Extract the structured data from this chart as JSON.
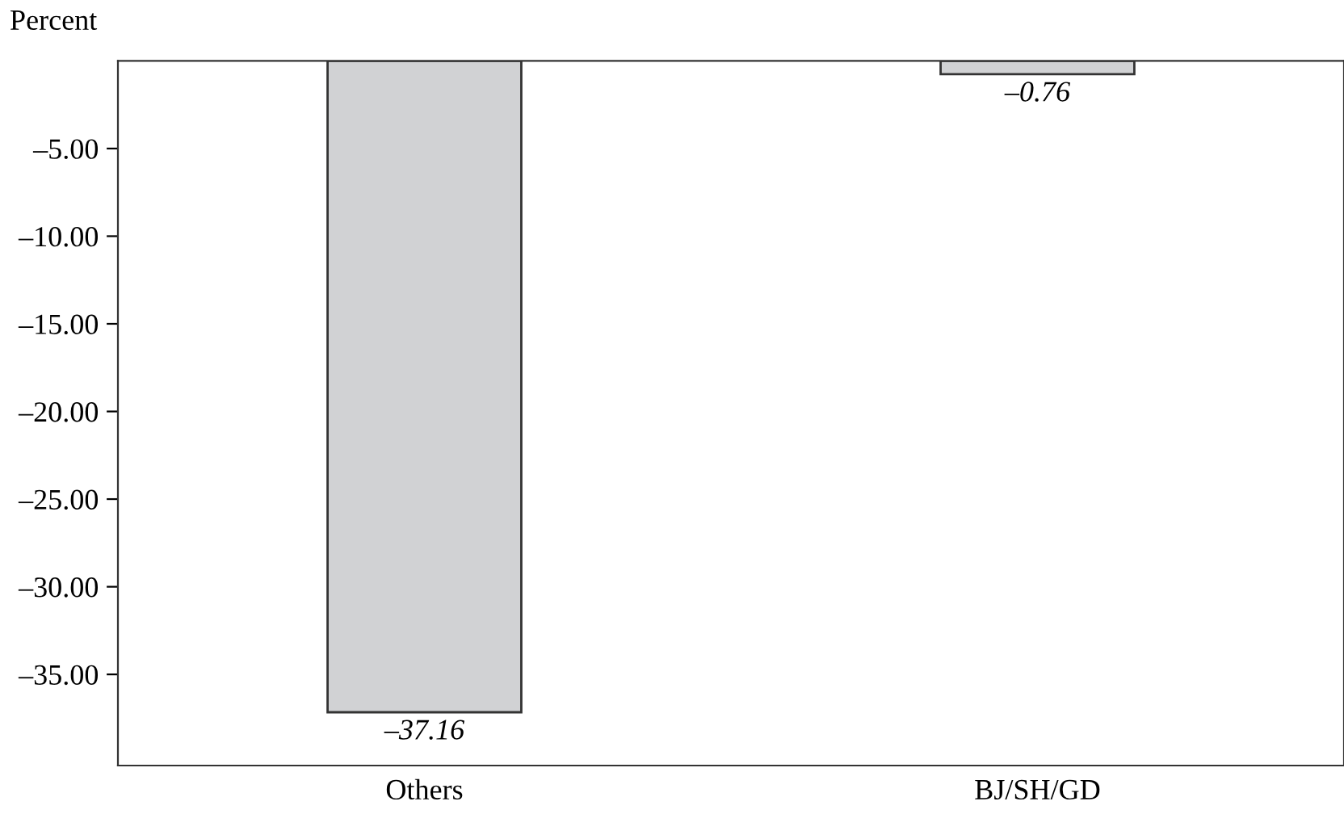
{
  "chart_data": {
    "type": "bar",
    "ylabel": "Percent",
    "categories": [
      "Others",
      "BJ/SH/GD"
    ],
    "values": [
      -37.16,
      -0.76
    ],
    "color": "#d1d2d4",
    "value_labels": [
      "–37.16",
      "–0.76"
    ],
    "ylim": [
      -40.2,
      0
    ],
    "yticks": [
      {
        "value": -5,
        "label": "–5.00"
      },
      {
        "value": -10,
        "label": "–10.00"
      },
      {
        "value": -15,
        "label": "–15.00"
      },
      {
        "value": -20,
        "label": "–20.00"
      },
      {
        "value": -25,
        "label": "–25.00"
      },
      {
        "value": -30,
        "label": "–30.00"
      },
      {
        "value": -35,
        "label": "–35.00"
      }
    ],
    "grid": false,
    "legend": false
  }
}
